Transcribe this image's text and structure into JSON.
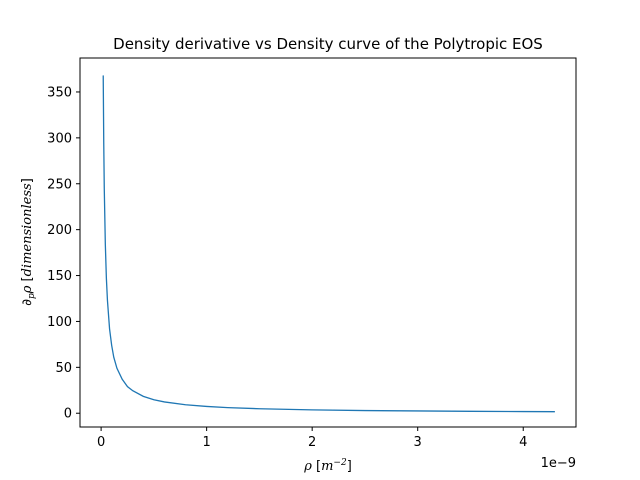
{
  "chart_data": {
    "type": "line",
    "title": "Density derivative vs Density curve of the Polytropic EOS",
    "xlabel": "ρ [m⁻²]",
    "ylabel": "∂ₚρ [dimensionless]",
    "x_offset_label": "1e−9",
    "xlim": [
      -0.2,
      4.5
    ],
    "ylim": [
      -15,
      387
    ],
    "x_ticks": [
      0,
      1,
      2,
      3,
      4
    ],
    "y_ticks": [
      0,
      50,
      100,
      150,
      200,
      250,
      300,
      350
    ],
    "grid": false,
    "line_color": "#1f77b4",
    "series": [
      {
        "x": [
          0.02,
          0.025,
          0.03,
          0.04,
          0.05,
          0.06,
          0.08,
          0.1,
          0.12,
          0.15,
          0.2,
          0.25,
          0.3,
          0.4,
          0.5,
          0.6,
          0.8,
          1.0,
          1.2,
          1.5,
          2.0,
          2.5,
          3.0,
          3.5,
          4.0,
          4.3
        ],
        "y": [
          368,
          295,
          245,
          184,
          147,
          123,
          92,
          74,
          61,
          49,
          37,
          29,
          24.5,
          18.4,
          14.7,
          12.3,
          9.2,
          7.4,
          6.1,
          4.9,
          3.7,
          2.9,
          2.5,
          2.1,
          1.8,
          1.7
        ]
      }
    ]
  }
}
